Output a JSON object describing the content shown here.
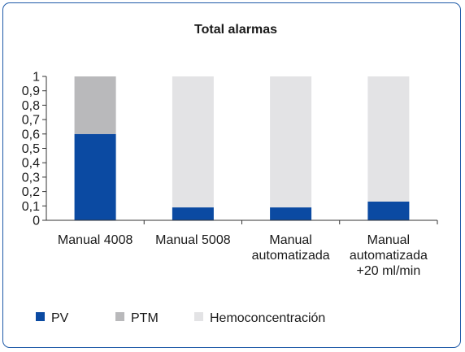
{
  "chart_data": {
    "type": "bar",
    "stacked": true,
    "title": "Total alarmas",
    "xlabel": "",
    "ylabel": "",
    "ylim": [
      0,
      1
    ],
    "yticks": [
      "0",
      "0,1",
      "0,2",
      "0,3",
      "0,4",
      "0,5",
      "0,6",
      "0,7",
      "0,8",
      "0,9",
      "1"
    ],
    "categories": [
      [
        "Manual 4008"
      ],
      [
        "Manual 5008"
      ],
      [
        "Manual",
        "automatizada"
      ],
      [
        "Manual",
        "automatizada",
        "+20 ml/min"
      ]
    ],
    "series": [
      {
        "name": "PV",
        "color": "#0b4aa2",
        "values": [
          0.6,
          0.09,
          0.09,
          0.13
        ]
      },
      {
        "name": "PTM",
        "color": "#b9b9bb",
        "values": [
          0.4,
          0,
          0,
          0
        ]
      },
      {
        "name": "Hemoconcentración",
        "color": "#e3e3e5",
        "values": [
          0,
          0.91,
          0.91,
          0.87
        ]
      }
    ],
    "grid": false,
    "legend": "bottom"
  }
}
